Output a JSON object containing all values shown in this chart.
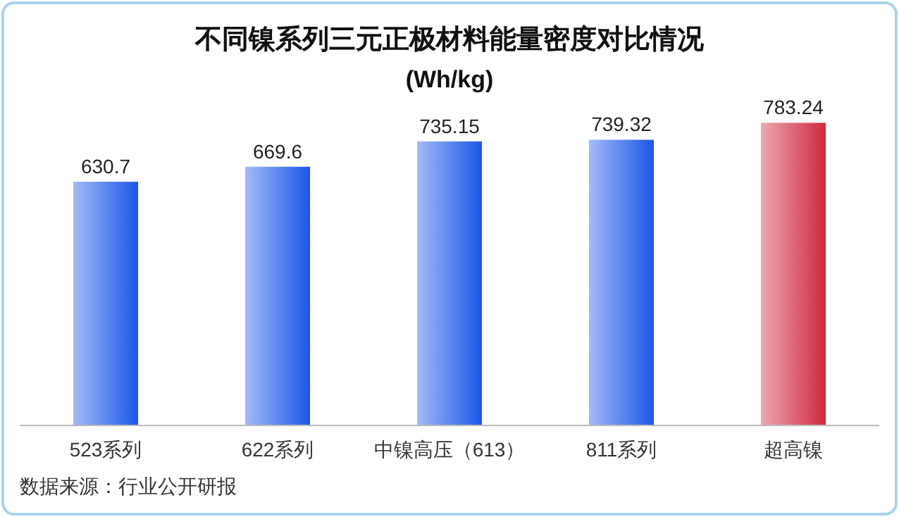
{
  "chart_data": {
    "type": "bar",
    "title": "不同镍系列三元正极材料能量密度对比情况",
    "subtitle": "(Wh/kg)",
    "categories": [
      "523系列",
      "622系列",
      "中镍高压（613）",
      "811系列",
      "超高镍"
    ],
    "values": [
      630.7,
      669.6,
      735.15,
      739.32,
      783.24
    ],
    "colors": [
      "#1a56e8",
      "#1a56e8",
      "#1a56e8",
      "#1a56e8",
      "#d0283e"
    ],
    "data_labels": true,
    "annotations": [
      "数据来源：行业公开研报"
    ]
  }
}
